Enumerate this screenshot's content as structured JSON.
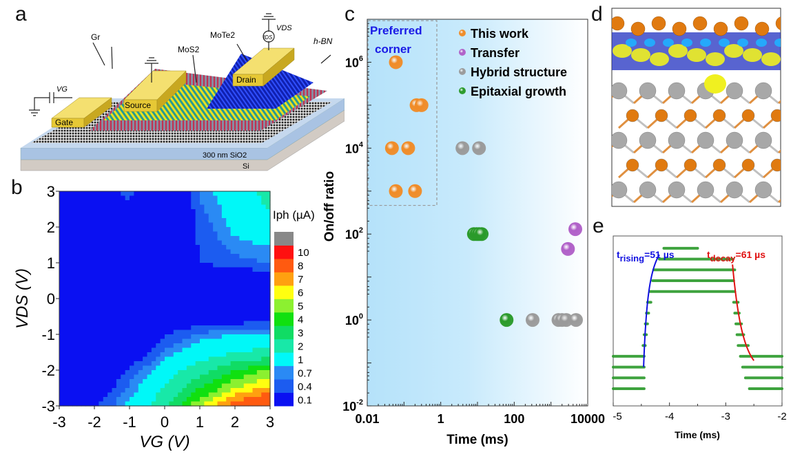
{
  "panels": {
    "a": {
      "label": "a",
      "texts": {
        "gr": "Gr",
        "mos2": "MoS2",
        "mote2": "MoTe2",
        "hbn": "h-BN",
        "vg": "VG",
        "vds": "VDS",
        "ids": "IDS",
        "gate": "Gate",
        "source": "Source",
        "drain": "Drain",
        "sio2": "300 nm SiO2",
        "si": "Si"
      }
    },
    "b": {
      "label": "b"
    },
    "c": {
      "label": "c",
      "corner_label_1": "Preferred",
      "corner_label_2": "corner"
    },
    "d": {
      "label": "d"
    },
    "e": {
      "label": "e"
    }
  },
  "colors": {
    "orange": "#f08c28",
    "purple": "#b060c8",
    "gray": "#9a9a9a",
    "green": "#2a9a2a",
    "rise_fit": "#1010e0",
    "decay_fit": "#e01010",
    "corner_text": "#1a1ae6"
  },
  "chart_data": [
    {
      "panel": "b",
      "type": "heatmap",
      "xlabel": "VG (V)",
      "ylabel": "VDS (V)",
      "colorbar_label": "Iph (µA)",
      "xlim": [
        -3,
        3
      ],
      "ylim": [
        -3,
        3
      ],
      "x_ticks": [
        "-3",
        "-2",
        "-1",
        "0",
        "1",
        "2",
        "3"
      ],
      "y_ticks": [
        "3",
        "2",
        "1",
        "0",
        "-1",
        "-2",
        "-3"
      ],
      "x": [
        -3,
        -2,
        -1,
        0,
        1,
        2,
        3
      ],
      "y": [
        3,
        2,
        1,
        0,
        -1,
        -2,
        -3
      ],
      "values_approx": [
        [
          0.05,
          0.2,
          0.5,
          0.05,
          0.8,
          1.5,
          2.5
        ],
        [
          0.05,
          0.25,
          0.2,
          0.05,
          0.5,
          1.2,
          1.6
        ],
        [
          0.05,
          0.05,
          0.05,
          0.1,
          0.4,
          0.6,
          0.7
        ],
        [
          0.05,
          0.05,
          0.05,
          0.05,
          0.05,
          0.05,
          0.05
        ],
        [
          0.05,
          0.05,
          0.05,
          0.4,
          0.8,
          1.0,
          1.1
        ],
        [
          0.05,
          0.1,
          0.5,
          1.5,
          2.6,
          4.0,
          5.2
        ],
        [
          0.1,
          0.4,
          1.2,
          3.0,
          6.0,
          9.0,
          10.5
        ]
      ],
      "levels": [
        "0.1",
        "0.4",
        "0.7",
        "1",
        "2",
        "3",
        "4",
        "5",
        "6",
        "7",
        "8",
        "10"
      ],
      "level_values": [
        0.1,
        0.4,
        0.7,
        1,
        2,
        3,
        4,
        5,
        6,
        7,
        8,
        10
      ],
      "level_colors": [
        "#0a10f2",
        "#1c5cf0",
        "#2a8af4",
        "#00f8f8",
        "#18e8a8",
        "#10dc64",
        "#10e010",
        "#8cf030",
        "#ffff10",
        "#ffa010",
        "#ff5a10",
        "#ff1010",
        "#888888"
      ]
    },
    {
      "panel": "c",
      "type": "scatter",
      "xlabel": "Time (ms)",
      "ylabel": "On/off ratio",
      "xscale": "log",
      "yscale": "log",
      "xlim": [
        0.01,
        10000
      ],
      "ylim": [
        0.01,
        10000000
      ],
      "x_ticks": [
        "0.01",
        "1",
        "100",
        "10000"
      ],
      "y_ticks": [
        {
          "base": "10",
          "exp": "6",
          "v": 1000000
        },
        {
          "base": "10",
          "exp": "4",
          "v": 10000
        },
        {
          "base": "10",
          "exp": "2",
          "v": 100
        },
        {
          "base": "10",
          "exp": "0",
          "v": 1
        },
        {
          "base": "10",
          "exp": "-2",
          "v": 0.01
        }
      ],
      "legend_placement": "top-right",
      "preferred_corner": {
        "x_max": 0.75,
        "y_min": 500
      },
      "series": [
        {
          "name": "This work",
          "color": "orange",
          "points": [
            [
              0.06,
              1000000
            ],
            [
              0.22,
              100000
            ],
            [
              0.3,
              100000
            ],
            [
              0.047,
              10000
            ],
            [
              0.13,
              10000
            ],
            [
              0.06,
              1000
            ],
            [
              0.2,
              1000
            ]
          ]
        },
        {
          "name": "Transfer",
          "color": "purple",
          "points": [
            [
              4600,
              130
            ],
            [
              2900,
              45
            ]
          ]
        },
        {
          "name": "Hybrid structure",
          "color": "gray",
          "points": [
            [
              3.9,
              10000
            ],
            [
              11,
              10000
            ],
            [
              316,
              1
            ],
            [
              1600,
              1
            ],
            [
              2000,
              1
            ],
            [
              2600,
              1
            ],
            [
              4800,
              1
            ]
          ]
        },
        {
          "name": "Epitaxial growth",
          "color": "green",
          "points": [
            [
              8,
              100
            ],
            [
              9.5,
              100
            ],
            [
              11,
              100
            ],
            [
              13,
              100
            ],
            [
              62,
              1
            ]
          ]
        }
      ]
    },
    {
      "panel": "e",
      "type": "line",
      "xlabel": "Time (ms)",
      "xlim": [
        -5,
        -2
      ],
      "x_ticks": [
        "-5",
        "-4",
        "-3",
        "-2"
      ],
      "rise_annotation": {
        "sym": "t",
        "sub": "rising",
        "value": "=51 µs"
      },
      "decay_annotation": {
        "sym": "t",
        "sub": "decay",
        "value": "=61 µs"
      },
      "step_levels": [
        {
          "level": 0,
          "x": [
            -5,
            -4.45
          ]
        },
        {
          "level": 1,
          "x": [
            -5,
            -4.45
          ]
        },
        {
          "level": 2,
          "x": [
            -5,
            -4.45
          ]
        },
        {
          "level": 3,
          "x": [
            -5,
            -4.45
          ]
        },
        {
          "level": 4,
          "x": [
            -4.47,
            -4.43
          ]
        },
        {
          "level": 5,
          "x": [
            -4.45,
            -4.41
          ]
        },
        {
          "level": 6,
          "x": [
            -4.43,
            -4.39
          ]
        },
        {
          "level": 7,
          "x": [
            -4.41,
            -4.37
          ]
        },
        {
          "level": 8,
          "x": [
            -4.39,
            -4.33
          ]
        },
        {
          "level": 9,
          "x": [
            -4.35,
            -2.84
          ]
        },
        {
          "level": 10,
          "x": [
            -4.3,
            -2.86
          ]
        },
        {
          "level": 11,
          "x": [
            -4.28,
            -2.84
          ]
        },
        {
          "level": 12,
          "x": [
            -4.18,
            -2.88
          ]
        },
        {
          "level": 13,
          "x": [
            -4.1,
            -3.5
          ]
        },
        {
          "level": 8,
          "x": [
            -2.86,
            -2.78
          ]
        },
        {
          "level": 7,
          "x": [
            -2.84,
            -2.76
          ]
        },
        {
          "level": 6,
          "x": [
            -2.82,
            -2.72
          ]
        },
        {
          "level": 5,
          "x": [
            -2.8,
            -2.68
          ]
        },
        {
          "level": 4,
          "x": [
            -2.78,
            -2.6
          ]
        },
        {
          "level": 3,
          "x": [
            -2.74,
            -2
          ]
        },
        {
          "level": 2,
          "x": [
            -2.7,
            -2
          ]
        },
        {
          "level": 1,
          "x": [
            -2.65,
            -2
          ]
        },
        {
          "level": 0,
          "x": [
            -2.58,
            -2
          ]
        }
      ]
    }
  ]
}
